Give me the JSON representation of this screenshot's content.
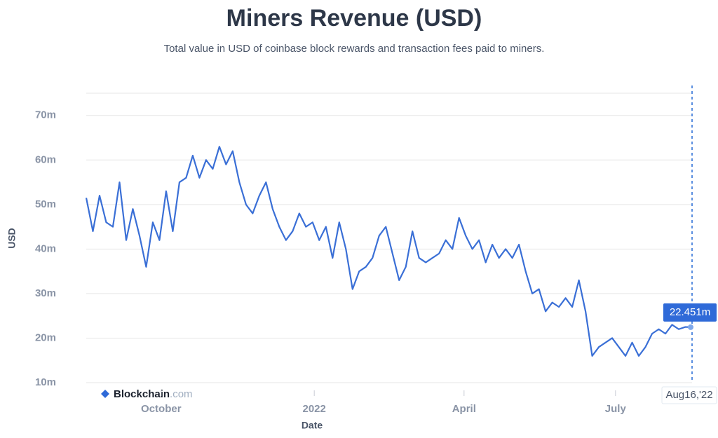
{
  "chart_data": {
    "type": "line",
    "title": "Miners Revenue (USD)",
    "subtitle": "Total value in USD of coinbase block rewards and transaction fees paid to miners.",
    "x_label": "Date",
    "y_label": "USD",
    "watermark": {
      "brand": "Blockchain",
      "suffix": ".com"
    },
    "x": [
      "2021-08-17",
      "2021-08-21",
      "2021-08-25",
      "2021-08-29",
      "2021-09-02",
      "2021-09-06",
      "2021-09-10",
      "2021-09-14",
      "2021-09-18",
      "2021-09-22",
      "2021-09-26",
      "2021-09-30",
      "2021-10-04",
      "2021-10-08",
      "2021-10-12",
      "2021-10-16",
      "2021-10-20",
      "2021-10-24",
      "2021-10-28",
      "2021-11-01",
      "2021-11-05",
      "2021-11-09",
      "2021-11-13",
      "2021-11-17",
      "2021-11-21",
      "2021-11-25",
      "2021-11-29",
      "2021-12-03",
      "2021-12-07",
      "2021-12-11",
      "2021-12-15",
      "2021-12-19",
      "2021-12-23",
      "2021-12-27",
      "2021-12-31",
      "2022-01-04",
      "2022-01-08",
      "2022-01-12",
      "2022-01-16",
      "2022-01-20",
      "2022-01-24",
      "2022-01-28",
      "2022-02-01",
      "2022-02-05",
      "2022-02-09",
      "2022-02-13",
      "2022-02-17",
      "2022-02-21",
      "2022-02-25",
      "2022-03-01",
      "2022-03-05",
      "2022-03-09",
      "2022-03-13",
      "2022-03-17",
      "2022-03-21",
      "2022-03-25",
      "2022-03-29",
      "2022-04-02",
      "2022-04-06",
      "2022-04-10",
      "2022-04-14",
      "2022-04-18",
      "2022-04-22",
      "2022-04-26",
      "2022-04-30",
      "2022-05-04",
      "2022-05-08",
      "2022-05-12",
      "2022-05-16",
      "2022-05-20",
      "2022-05-24",
      "2022-05-28",
      "2022-06-01",
      "2022-06-05",
      "2022-06-09",
      "2022-06-13",
      "2022-06-17",
      "2022-06-21",
      "2022-06-25",
      "2022-06-29",
      "2022-07-03",
      "2022-07-07",
      "2022-07-11",
      "2022-07-15",
      "2022-07-19",
      "2022-07-23",
      "2022-07-27",
      "2022-07-31",
      "2022-08-04",
      "2022-08-08",
      "2022-08-12",
      "2022-08-16"
    ],
    "series": [
      {
        "name": "Miners Revenue",
        "color": "#3a6fd6",
        "values": [
          51.5,
          44,
          52,
          46,
          45,
          55,
          42,
          49,
          43,
          36,
          46,
          42,
          53,
          44,
          55,
          56,
          61,
          56,
          60,
          58,
          63,
          59,
          62,
          55,
          50,
          48,
          52,
          55,
          49,
          45,
          42,
          44,
          48,
          45,
          46,
          42,
          45,
          38,
          46,
          40,
          31,
          35,
          36,
          38,
          43,
          45,
          39,
          33,
          36,
          44,
          38,
          37,
          38,
          39,
          42,
          40,
          47,
          43,
          40,
          42,
          37,
          41,
          38,
          40,
          38,
          41,
          35,
          30,
          31,
          26,
          28,
          27,
          29,
          27,
          33,
          26,
          16,
          18,
          19,
          20,
          18,
          16,
          19,
          16,
          18,
          21,
          22,
          21,
          23,
          22,
          22.5,
          22.451
        ]
      }
    ],
    "xlim": [
      "2021-08-17",
      "2022-08-16"
    ],
    "xticks": [
      {
        "value": "2021-10-01",
        "label": "October"
      },
      {
        "value": "2022-01-01",
        "label": "2022"
      },
      {
        "value": "2022-04-01",
        "label": "April"
      },
      {
        "value": "2022-07-01",
        "label": "July"
      }
    ],
    "ylim": [
      10,
      75
    ],
    "yticks": [
      {
        "value": 10,
        "label": "10m"
      },
      {
        "value": 20,
        "label": "20m"
      },
      {
        "value": 30,
        "label": "30m"
      },
      {
        "value": 40,
        "label": "40m"
      },
      {
        "value": 50,
        "label": "50m"
      },
      {
        "value": 60,
        "label": "60m"
      },
      {
        "value": 70,
        "label": "70m"
      }
    ],
    "grid": true,
    "crosshair": {
      "date": "2022-08-16",
      "date_label": "Aug16,'22",
      "value": 22.451,
      "value_label": "22.451m"
    }
  }
}
